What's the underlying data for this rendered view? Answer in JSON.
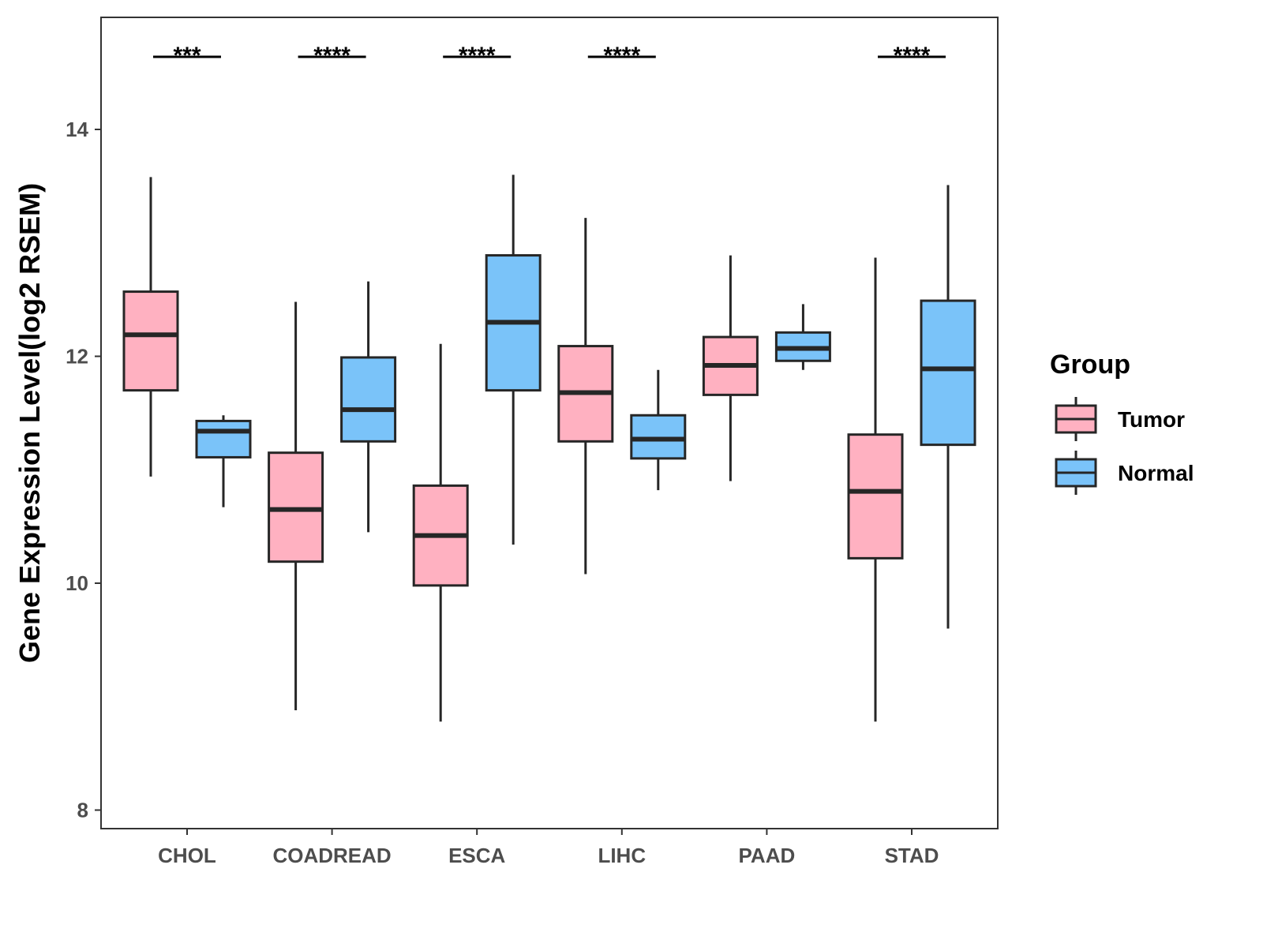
{
  "chart_data": {
    "type": "box",
    "title": "",
    "xlabel": "",
    "ylabel": "Gene Expression Level(log2 RSEM)",
    "ylim": [
      7.84,
      14.99
    ],
    "yticks": [
      8,
      10,
      12,
      14
    ],
    "categories": [
      "CHOL",
      "COADREAD",
      "ESCA",
      "LIHC",
      "PAAD",
      "STAD"
    ],
    "significance": [
      "***",
      "****",
      "****",
      "****",
      "",
      "****"
    ],
    "legend": {
      "title": "Group",
      "position": "right"
    },
    "series": [
      {
        "name": "Tumor",
        "color": "#FFB1C1",
        "boxes": [
          {
            "min": 10.94,
            "q1": 11.7,
            "median": 12.19,
            "q3": 12.57,
            "max": 13.58
          },
          {
            "min": 8.88,
            "q1": 10.19,
            "median": 10.65,
            "q3": 11.15,
            "max": 12.48
          },
          {
            "min": 8.78,
            "q1": 9.98,
            "median": 10.42,
            "q3": 10.86,
            "max": 12.11
          },
          {
            "min": 10.08,
            "q1": 11.25,
            "median": 11.68,
            "q3": 12.09,
            "max": 13.22
          },
          {
            "min": 10.9,
            "q1": 11.66,
            "median": 11.92,
            "q3": 12.17,
            "max": 12.89
          },
          {
            "min": 8.78,
            "q1": 10.22,
            "median": 10.81,
            "q3": 11.31,
            "max": 12.87
          }
        ]
      },
      {
        "name": "Normal",
        "color": "#7AC3F9",
        "boxes": [
          {
            "min": 10.67,
            "q1": 11.11,
            "median": 11.34,
            "q3": 11.43,
            "max": 11.48
          },
          {
            "min": 10.45,
            "q1": 11.25,
            "median": 11.53,
            "q3": 11.99,
            "max": 12.66
          },
          {
            "min": 10.34,
            "q1": 11.7,
            "median": 12.3,
            "q3": 12.89,
            "max": 13.6
          },
          {
            "min": 10.82,
            "q1": 11.1,
            "median": 11.27,
            "q3": 11.48,
            "max": 11.88
          },
          {
            "min": 11.88,
            "q1": 11.96,
            "median": 12.07,
            "q3": 12.21,
            "max": 12.46
          },
          {
            "min": 9.6,
            "q1": 11.22,
            "median": 11.89,
            "q3": 12.49,
            "max": 13.51
          }
        ]
      }
    ]
  }
}
